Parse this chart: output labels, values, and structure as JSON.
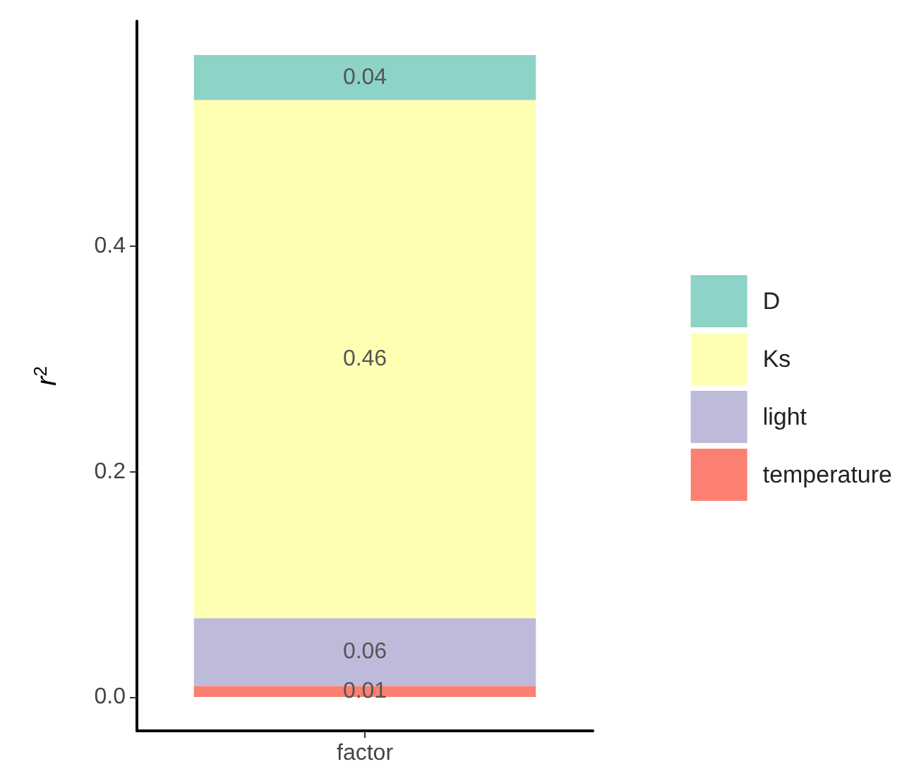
{
  "chart_data": {
    "type": "bar",
    "stacked": true,
    "ylabel": "r$^{2}$",
    "categories": [
      "factor"
    ],
    "series": [
      {
        "name": "temperature",
        "color": "#fb8072",
        "values": [
          0.01
        ]
      },
      {
        "name": "light",
        "color": "#bebada",
        "values": [
          0.06
        ]
      },
      {
        "name": "Ks",
        "color": "#ffffb3",
        "values": [
          0.46
        ]
      },
      {
        "name": "D",
        "color": "#8dd3c7",
        "values": [
          0.04
        ]
      }
    ],
    "ylim": [
      -0.03,
      0.6
    ],
    "yticks": [
      {
        "value": 0,
        "label": "0.0"
      },
      {
        "value": 0.2,
        "label": "0.2"
      },
      {
        "value": 0.4,
        "label": "0.4"
      }
    ],
    "data_labels": true,
    "grid": false,
    "legend": "right"
  }
}
